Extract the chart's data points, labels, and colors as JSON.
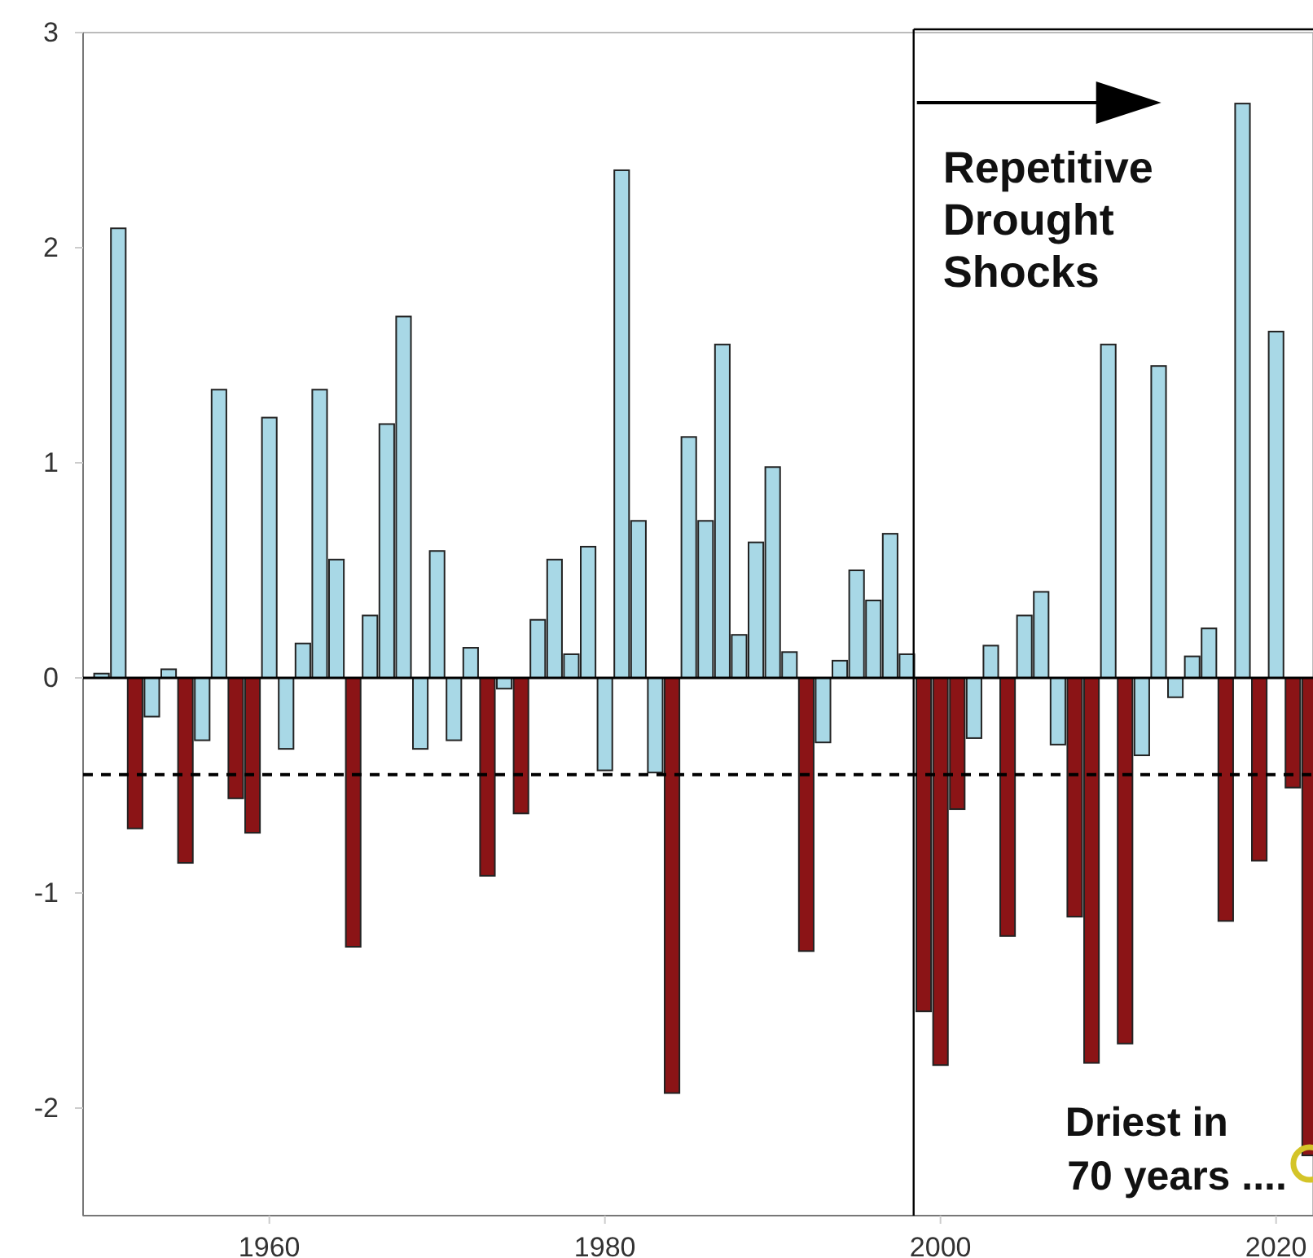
{
  "chart_data": {
    "type": "bar",
    "x": [
      1950,
      1951,
      1952,
      1953,
      1954,
      1955,
      1956,
      1957,
      1958,
      1959,
      1960,
      1961,
      1962,
      1963,
      1964,
      1965,
      1966,
      1967,
      1968,
      1969,
      1970,
      1971,
      1972,
      1973,
      1974,
      1975,
      1976,
      1977,
      1978,
      1979,
      1980,
      1981,
      1982,
      1983,
      1984,
      1985,
      1986,
      1987,
      1988,
      1989,
      1990,
      1991,
      1992,
      1993,
      1994,
      1995,
      1996,
      1997,
      1998,
      1999,
      2000,
      2001,
      2002,
      2003,
      2004,
      2005,
      2006,
      2007,
      2008,
      2009,
      2010,
      2011,
      2012,
      2013,
      2014,
      2015,
      2016,
      2017,
      2018,
      2019,
      2020,
      2021,
      2022
    ],
    "values": [
      0.02,
      2.09,
      -0.7,
      -0.18,
      0.04,
      -0.86,
      -0.29,
      1.34,
      -0.56,
      -0.72,
      1.21,
      -0.33,
      0.16,
      1.34,
      0.55,
      -1.25,
      0.29,
      1.18,
      1.68,
      -0.33,
      0.59,
      -0.29,
      0.14,
      -0.92,
      -0.05,
      -0.63,
      0.27,
      0.55,
      0.11,
      0.61,
      -0.43,
      2.36,
      0.73,
      -0.44,
      -1.93,
      1.12,
      0.73,
      1.55,
      0.2,
      0.63,
      0.98,
      0.12,
      -1.27,
      -0.3,
      0.08,
      0.5,
      0.36,
      0.67,
      0.11,
      -1.55,
      -1.8,
      -0.61,
      -0.28,
      0.15,
      -1.2,
      0.29,
      0.4,
      -0.31,
      -1.11,
      -1.79,
      1.55,
      -1.7,
      -0.36,
      1.45,
      -0.09,
      0.1,
      0.23,
      -1.13,
      2.67,
      -0.85,
      1.61,
      -0.51,
      -2.22
    ],
    "colors": [
      "#a8d8e6",
      "#a8d8e6",
      "#8b1416",
      "#a8d8e6",
      "#a8d8e6",
      "#8b1416",
      "#a8d8e6",
      "#a8d8e6",
      "#8b1416",
      "#8b1416",
      "#a8d8e6",
      "#a8d8e6",
      "#a8d8e6",
      "#a8d8e6",
      "#a8d8e6",
      "#8b1416",
      "#a8d8e6",
      "#a8d8e6",
      "#a8d8e6",
      "#a8d8e6",
      "#a8d8e6",
      "#a8d8e6",
      "#a8d8e6",
      "#8b1416",
      "#a8d8e6",
      "#8b1416",
      "#a8d8e6",
      "#a8d8e6",
      "#a8d8e6",
      "#a8d8e6",
      "#a8d8e6",
      "#a8d8e6",
      "#a8d8e6",
      "#a8d8e6",
      "#8b1416",
      "#a8d8e6",
      "#a8d8e6",
      "#a8d8e6",
      "#a8d8e6",
      "#a8d8e6",
      "#a8d8e6",
      "#a8d8e6",
      "#8b1416",
      "#a8d8e6",
      "#a8d8e6",
      "#a8d8e6",
      "#a8d8e6",
      "#a8d8e6",
      "#a8d8e6",
      "#8b1416",
      "#8b1416",
      "#8b1416",
      "#a8d8e6",
      "#a8d8e6",
      "#8b1416",
      "#a8d8e6",
      "#a8d8e6",
      "#a8d8e6",
      "#8b1416",
      "#8b1416",
      "#a8d8e6",
      "#8b1416",
      "#a8d8e6",
      "#a8d8e6",
      "#a8d8e6",
      "#a8d8e6",
      "#a8d8e6",
      "#8b1416",
      "#a8d8e6",
      "#8b1416",
      "#a8d8e6",
      "#8b1416",
      "#8b1416"
    ],
    "xlim": [
      1948.9,
      2022.2
    ],
    "xticks": [
      1960,
      1980,
      2000,
      2020
    ],
    "ylim": [
      -2.5,
      3
    ],
    "yticks": [
      -2,
      -1,
      0,
      1,
      2,
      3
    ],
    "ref_lines": [
      {
        "axis": "y",
        "value": -0.45,
        "line_style": "dashed",
        "color": "#000000"
      },
      {
        "axis": "x",
        "value": 1998.4,
        "line_style": "solid",
        "color": "#000000",
        "label": "Repetitive Drought Shocks"
      }
    ],
    "annotations": [
      {
        "text": "Driest in 70 years ....",
        "x": 2022,
        "y": -2.22
      }
    ]
  }
}
